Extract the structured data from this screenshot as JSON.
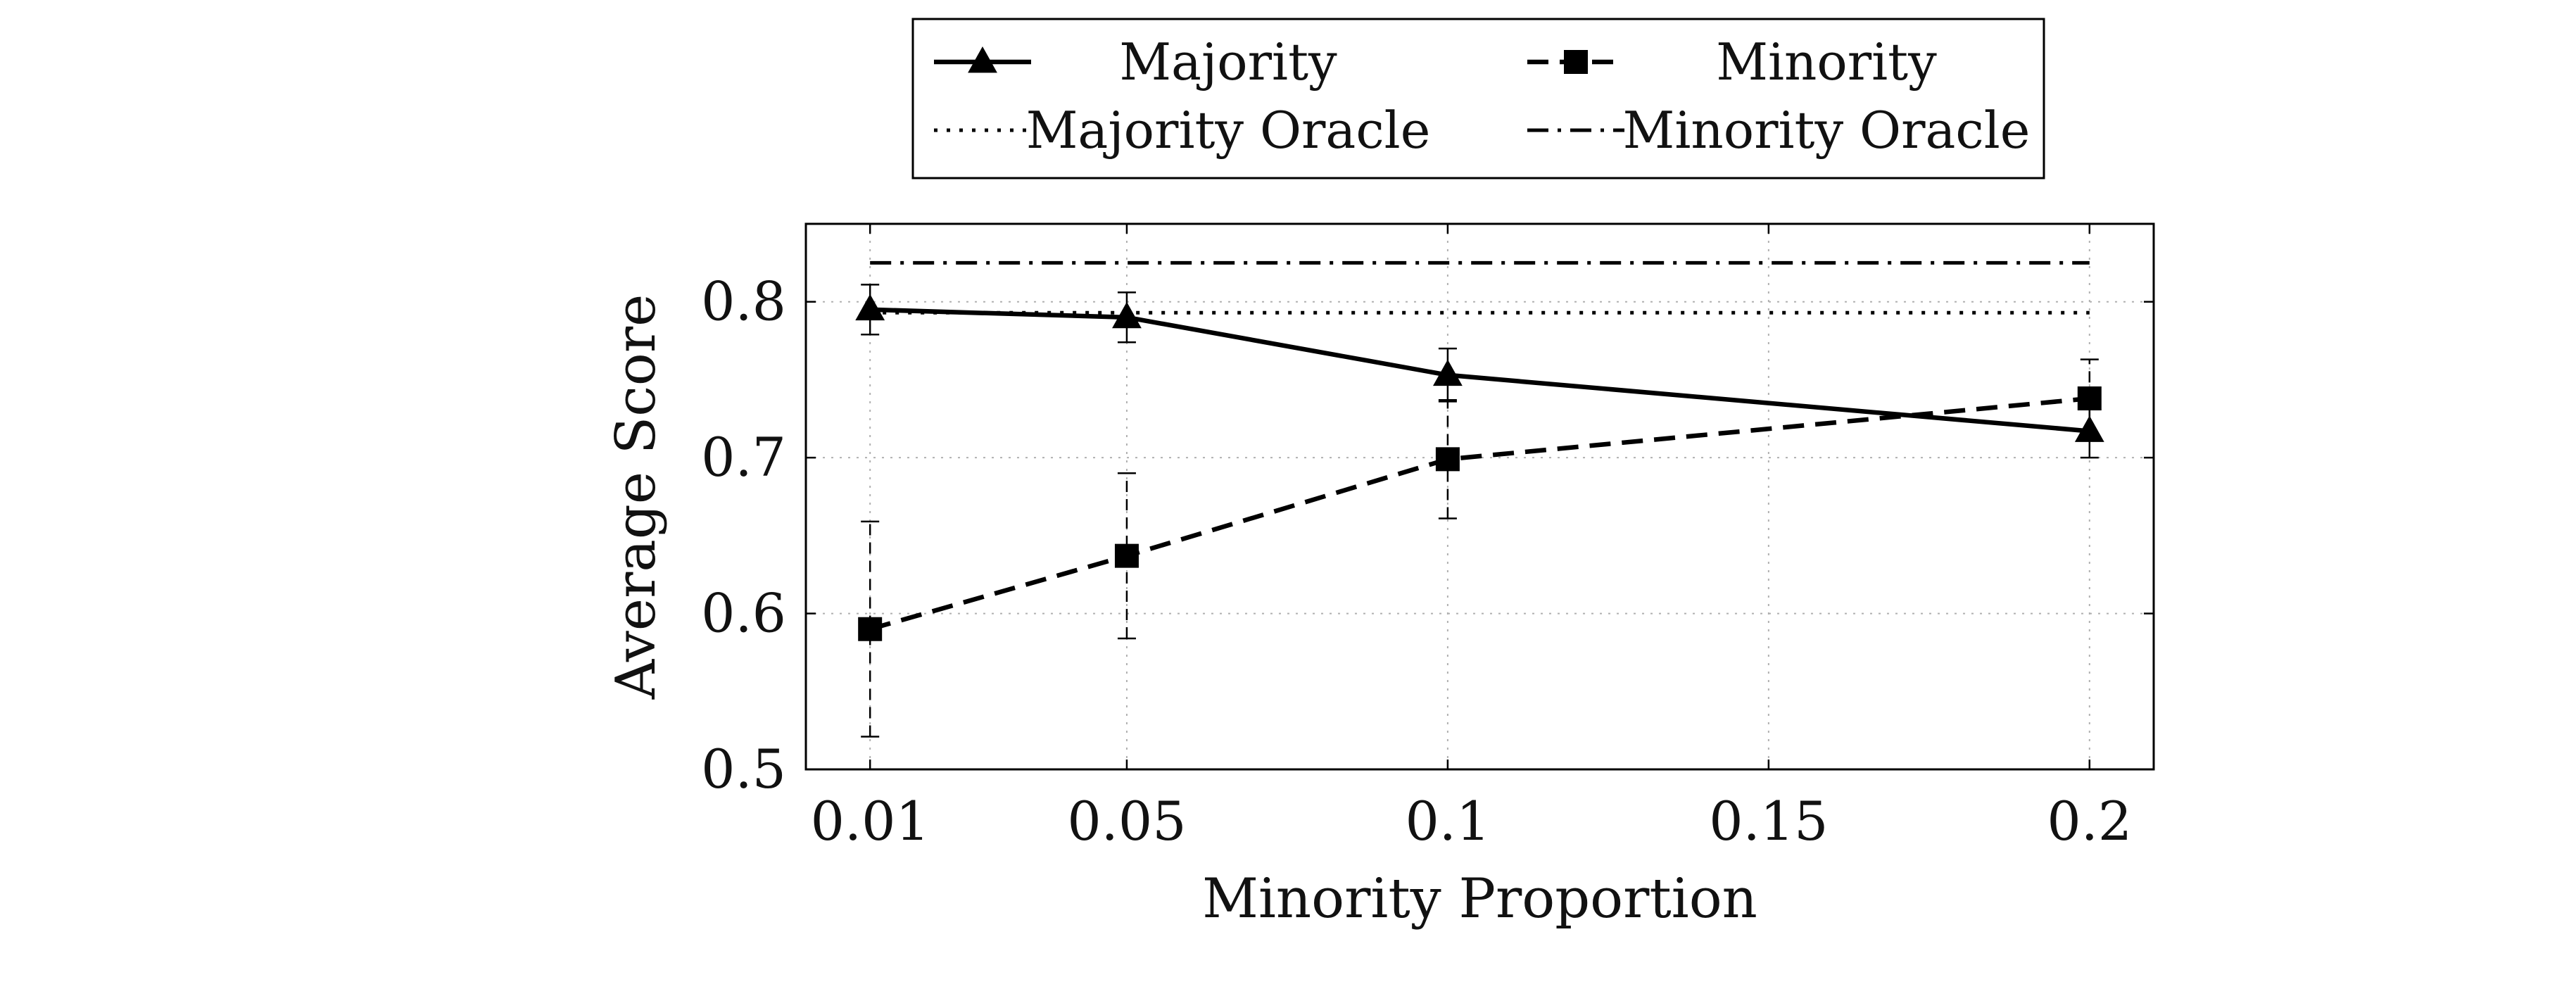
{
  "chart_data": {
    "type": "line",
    "title": "",
    "xlabel": "Minority Proportion",
    "ylabel": "Average Score",
    "x": [
      0.01,
      0.05,
      0.1,
      0.2
    ],
    "xlim": [
      0.0,
      0.21
    ],
    "ylim": [
      0.5,
      0.85
    ],
    "xticks": [
      0.01,
      0.05,
      0.1,
      0.15,
      0.2
    ],
    "xtick_labels": [
      "0.01",
      "0.05",
      "0.1",
      "0.15",
      "0.2"
    ],
    "yticks": [
      0.5,
      0.6,
      0.7,
      0.8
    ],
    "ytick_labels": [
      "0.5",
      "0.6",
      "0.7",
      "0.8"
    ],
    "grid": true,
    "legend_position": "top-center, above plot",
    "series": [
      {
        "name": "Majority",
        "style": "solid",
        "marker": "triangle",
        "values": [
          0.795,
          0.79,
          0.753,
          0.717
        ],
        "error": [
          0.016,
          0.016,
          0.017,
          0.017
        ]
      },
      {
        "name": "Minority",
        "style": "dashed",
        "marker": "square",
        "values": [
          0.59,
          0.637,
          0.699,
          0.738
        ],
        "error": [
          0.069,
          0.053,
          0.038,
          0.025
        ]
      },
      {
        "name": "Majority Oracle",
        "style": "dotted",
        "marker": "none",
        "values": [
          0.793,
          0.793,
          0.793,
          0.793
        ]
      },
      {
        "name": "Minority Oracle",
        "style": "dashdot",
        "marker": "none",
        "values": [
          0.825,
          0.825,
          0.825,
          0.825
        ]
      }
    ],
    "colors": {
      "line": "#000000",
      "grid": "#b0b0b0",
      "frame": "#000000"
    }
  }
}
